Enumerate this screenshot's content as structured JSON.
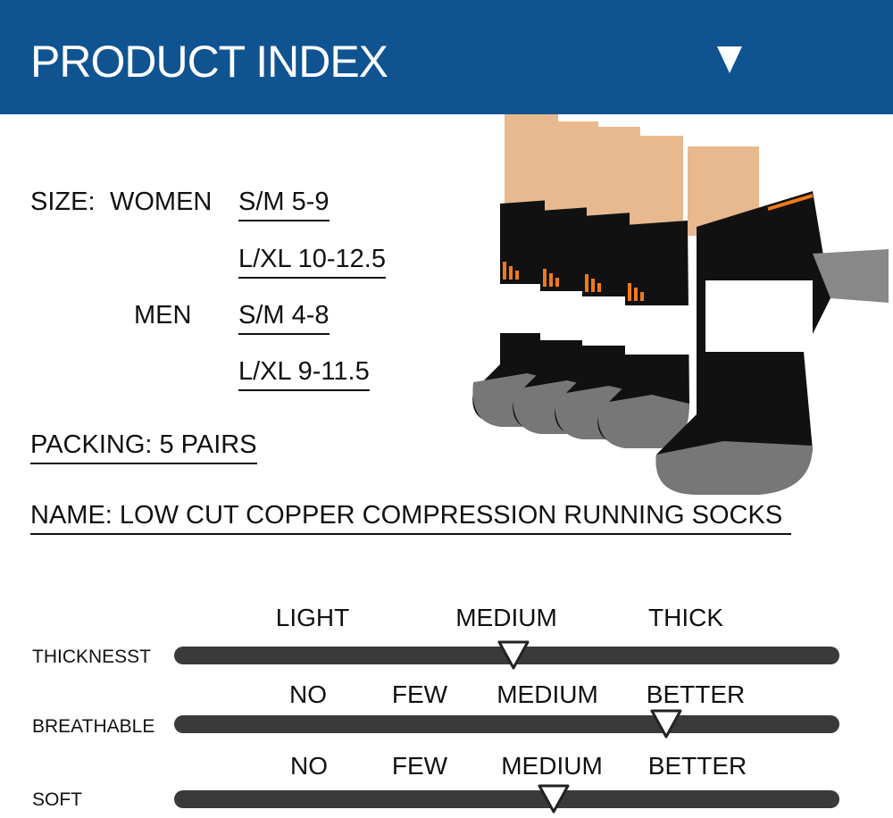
{
  "header": {
    "title": "PRODUCT INDEX",
    "icon": "triangle-down-icon",
    "bg_color": "#0f5491"
  },
  "size": {
    "label": "SIZE:",
    "women_label": "WOMEN",
    "women": [
      "S/M  5-9",
      "L/XL 10-12.5"
    ],
    "men_label": "MEN",
    "men": [
      "S/M  4-8",
      "L/XL  9-11.5"
    ]
  },
  "packing": "PACKING: 5 PAIRS",
  "name": "NAME: LOW CUT COPPER COMPRESSION RUNNING SOCKS",
  "ratings": [
    {
      "label": "THICKNESST",
      "options": [
        "LIGHT",
        "MEDIUM",
        "THICK"
      ],
      "level": 0.51
    },
    {
      "label": "BREATHABLE",
      "options": [
        "NO",
        "FEW",
        "MEDIUM",
        "BETTER"
      ],
      "level": 0.74
    },
    {
      "label": "SOFT",
      "options": [
        "NO",
        "FEW",
        "MEDIUM",
        "BETTER"
      ],
      "level": 0.57
    }
  ]
}
